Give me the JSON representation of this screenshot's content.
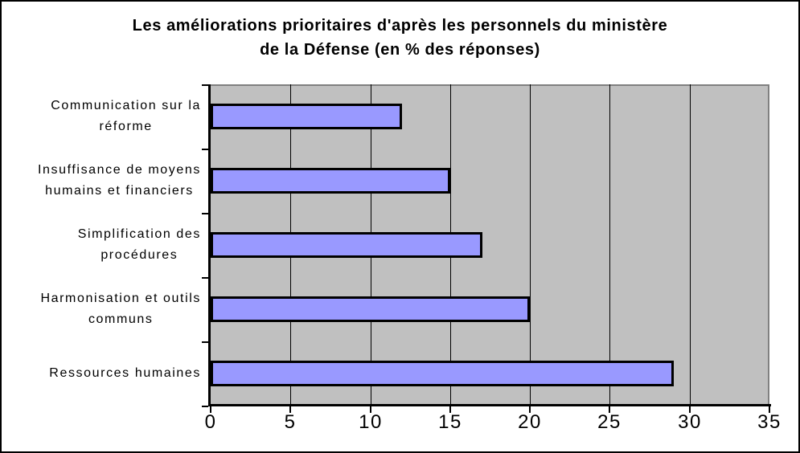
{
  "chart_data": {
    "type": "bar",
    "orientation": "horizontal",
    "title": "Les améliorations prioritaires d'après les personnels du ministère\nde la Défense (en %  des réponses)",
    "categories": [
      "Communication sur la\nréforme",
      "Insuffisance de moyens\nhumains et financiers",
      "Simplification des\nprocédures",
      "Harmonisation et outils\ncommuns",
      "Ressources humaines"
    ],
    "values": [
      12,
      15,
      17,
      20,
      29
    ],
    "xlim": [
      0,
      35
    ],
    "x_ticks": [
      0,
      5,
      10,
      15,
      20,
      25,
      30,
      35
    ],
    "xlabel": "",
    "ylabel": "",
    "grid": "vertical-only",
    "legend": "none",
    "colors": {
      "bar_fill": "#9999ff",
      "bar_border": "#000000",
      "plot_background": "#c0c0c0",
      "plot_shadow_border": "#808080",
      "axis": "#000000",
      "gridline": "#000000",
      "text": "#000000",
      "background": "#ffffff"
    }
  }
}
